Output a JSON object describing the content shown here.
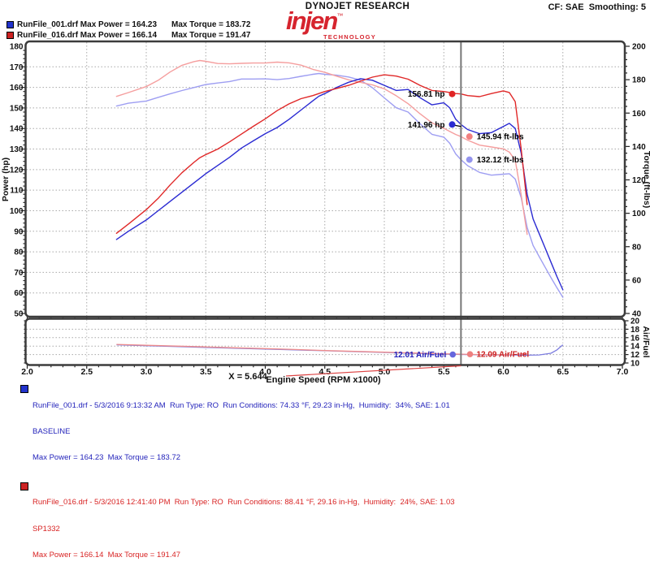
{
  "header": {
    "brand": "DYNOJET RESEARCH",
    "logo": {
      "word": "injen",
      "tm": "™",
      "sub": "TECHNOLOGY",
      "color": "#d6242e"
    },
    "settings": "CF: SAE  Smoothing: 5",
    "legend": [
      {
        "text1": "RunFile_001.drf Max Power = 164.23",
        "text2": "Max Torque = 183.72",
        "color": "#2233cc"
      },
      {
        "text1": "RunFile_016.drf Max Power = 166.14",
        "text2": "Max Torque = 191.47",
        "color": "#cc2222"
      }
    ]
  },
  "chart_data": {
    "type": "line",
    "xlabel": "Engine Speed (RPM x1000)",
    "x_range": [
      2.0,
      7.0
    ],
    "x_ticks": [
      "2.0",
      "2.5",
      "3.0",
      "3.5",
      "4.0",
      "4.5",
      "5.0",
      "5.5",
      "6.0",
      "6.5",
      "7.0"
    ],
    "x_gridlines": [
      2.5,
      3.0,
      3.5,
      4.0,
      4.5,
      5.0,
      5.5,
      6.0,
      6.5
    ],
    "cursor": {
      "x": 5.644,
      "label": "X = 5.644",
      "line_color": "#777777",
      "pointer_color": "#dd4444"
    },
    "main": {
      "left_axis": {
        "label": "Power (hp)",
        "range": [
          50,
          180
        ],
        "ticks": [
          50,
          60,
          70,
          80,
          90,
          100,
          110,
          120,
          130,
          140,
          150,
          160,
          170,
          180
        ]
      },
      "right_axis": {
        "label": "Torque (ft-lbs)",
        "range": [
          40,
          200
        ],
        "ticks": [
          40,
          60,
          80,
          100,
          120,
          140,
          160,
          180,
          200
        ]
      },
      "series": [
        {
          "name": "run1-torque",
          "run": "RunFile_001.drf",
          "axis": "torque",
          "color": "#9e9ef2",
          "points": [
            [
              2.75,
              164.2
            ],
            [
              2.85,
              165.9
            ],
            [
              3.0,
              167.2
            ],
            [
              3.1,
              169.4
            ],
            [
              3.2,
              171.5
            ],
            [
              3.3,
              173.5
            ],
            [
              3.4,
              175.3
            ],
            [
              3.5,
              177.1
            ],
            [
              3.6,
              178.0
            ],
            [
              3.7,
              178.9
            ],
            [
              3.8,
              180.4
            ],
            [
              3.9,
              180.4
            ],
            [
              4.0,
              180.5
            ],
            [
              4.1,
              180.0
            ],
            [
              4.2,
              180.7
            ],
            [
              4.3,
              182.0
            ],
            [
              4.4,
              183.2
            ],
            [
              4.45,
              183.72
            ],
            [
              4.5,
              183.2
            ],
            [
              4.6,
              182.7
            ],
            [
              4.7,
              181.6
            ],
            [
              4.8,
              179.7
            ],
            [
              4.9,
              175.2
            ],
            [
              5.0,
              169.1
            ],
            [
              5.1,
              163.2
            ],
            [
              5.2,
              160.6
            ],
            [
              5.3,
              153.6
            ],
            [
              5.4,
              147.3
            ],
            [
              5.5,
              145.6
            ],
            [
              5.55,
              141.9
            ],
            [
              5.6,
              135.5
            ],
            [
              5.644,
              132.12
            ],
            [
              5.7,
              128.5
            ],
            [
              5.8,
              124.5
            ],
            [
              5.9,
              122.8
            ],
            [
              6.0,
              123.4
            ],
            [
              6.05,
              123.7
            ],
            [
              6.1,
              120.5
            ],
            [
              6.15,
              109.3
            ],
            [
              6.2,
              91.5
            ],
            [
              6.25,
              80.7
            ],
            [
              6.3,
              74.2
            ],
            [
              6.35,
              67.8
            ],
            [
              6.4,
              61.5
            ],
            [
              6.45,
              55.4
            ],
            [
              6.5,
              49.7
            ]
          ]
        },
        {
          "name": "run2-torque",
          "run": "RunFile_016.drf",
          "axis": "torque",
          "color": "#f59e9e",
          "points": [
            [
              2.75,
              170.0
            ],
            [
              2.85,
              172.3
            ],
            [
              3.0,
              175.9
            ],
            [
              3.1,
              179.6
            ],
            [
              3.2,
              184.6
            ],
            [
              3.3,
              188.6
            ],
            [
              3.4,
              190.8
            ],
            [
              3.45,
              191.47
            ],
            [
              3.5,
              191.0
            ],
            [
              3.6,
              189.7
            ],
            [
              3.7,
              189.5
            ],
            [
              3.8,
              189.8
            ],
            [
              3.9,
              190.0
            ],
            [
              4.0,
              190.0
            ],
            [
              4.1,
              190.5
            ],
            [
              4.2,
              190.1
            ],
            [
              4.3,
              188.7
            ],
            [
              4.4,
              186.2
            ],
            [
              4.5,
              184.4
            ],
            [
              4.6,
              182.1
            ],
            [
              4.7,
              179.9
            ],
            [
              4.8,
              178.4
            ],
            [
              4.9,
              176.9
            ],
            [
              5.0,
              174.5
            ],
            [
              5.1,
              170.4
            ],
            [
              5.2,
              165.6
            ],
            [
              5.3,
              159.6
            ],
            [
              5.4,
              154.2
            ],
            [
              5.5,
              150.9
            ],
            [
              5.55,
              149.0
            ],
            [
              5.6,
              147.2
            ],
            [
              5.644,
              145.94
            ],
            [
              5.7,
              143.8
            ],
            [
              5.8,
              140.8
            ],
            [
              5.9,
              139.7
            ],
            [
              6.0,
              138.6
            ],
            [
              6.05,
              136.7
            ],
            [
              6.1,
              131.7
            ],
            [
              6.15,
              111.0
            ],
            [
              6.2,
              87.3
            ]
          ]
        },
        {
          "name": "run1-power",
          "run": "RunFile_001.drf",
          "axis": "power",
          "color": "#2a2ad2",
          "points": [
            [
              2.75,
              86
            ],
            [
              2.85,
              90
            ],
            [
              3.0,
              95.5
            ],
            [
              3.1,
              100
            ],
            [
              3.2,
              104.5
            ],
            [
              3.3,
              109
            ],
            [
              3.4,
              113.5
            ],
            [
              3.5,
              118
            ],
            [
              3.6,
              122
            ],
            [
              3.7,
              126
            ],
            [
              3.8,
              130.5
            ],
            [
              3.9,
              134
            ],
            [
              4.0,
              137.5
            ],
            [
              4.1,
              140.5
            ],
            [
              4.2,
              144.5
            ],
            [
              4.3,
              149
            ],
            [
              4.4,
              153.5
            ],
            [
              4.45,
              155.7
            ],
            [
              4.5,
              157
            ],
            [
              4.6,
              160
            ],
            [
              4.7,
              162.5
            ],
            [
              4.8,
              164.23
            ],
            [
              4.9,
              163.5
            ],
            [
              5.0,
              161
            ],
            [
              5.1,
              158.5
            ],
            [
              5.2,
              159
            ],
            [
              5.3,
              155
            ],
            [
              5.4,
              151.5
            ],
            [
              5.5,
              152.5
            ],
            [
              5.55,
              150
            ],
            [
              5.6,
              144.5
            ],
            [
              5.644,
              141.96
            ],
            [
              5.7,
              139.5
            ],
            [
              5.8,
              137.5
            ],
            [
              5.9,
              138
            ],
            [
              6.0,
              141
            ],
            [
              6.05,
              142.5
            ],
            [
              6.1,
              140
            ],
            [
              6.15,
              128
            ],
            [
              6.2,
              108
            ],
            [
              6.25,
              96
            ],
            [
              6.3,
              89
            ],
            [
              6.35,
              82
            ],
            [
              6.4,
              75
            ],
            [
              6.45,
              68
            ],
            [
              6.5,
              61.5
            ]
          ]
        },
        {
          "name": "run2-power",
          "run": "RunFile_016.drf",
          "axis": "power",
          "color": "#e02828",
          "points": [
            [
              2.75,
              89
            ],
            [
              2.85,
              93.5
            ],
            [
              3.0,
              100.5
            ],
            [
              3.1,
              106
            ],
            [
              3.2,
              112.5
            ],
            [
              3.3,
              118.5
            ],
            [
              3.4,
              123.5
            ],
            [
              3.45,
              125.8
            ],
            [
              3.5,
              127.3
            ],
            [
              3.6,
              130
            ],
            [
              3.7,
              133.5
            ],
            [
              3.8,
              137.3
            ],
            [
              3.9,
              141.1
            ],
            [
              4.0,
              144.7
            ],
            [
              4.1,
              148.7
            ],
            [
              4.2,
              152
            ],
            [
              4.3,
              154.5
            ],
            [
              4.4,
              156
            ],
            [
              4.5,
              158
            ],
            [
              4.6,
              159.5
            ],
            [
              4.7,
              161
            ],
            [
              4.8,
              163
            ],
            [
              4.9,
              165
            ],
            [
              5.0,
              166.14
            ],
            [
              5.1,
              165.5
            ],
            [
              5.2,
              164
            ],
            [
              5.3,
              161
            ],
            [
              5.4,
              158.5
            ],
            [
              5.5,
              158
            ],
            [
              5.55,
              157.5
            ],
            [
              5.6,
              157
            ],
            [
              5.644,
              156.81
            ],
            [
              5.7,
              156
            ],
            [
              5.8,
              155.5
            ],
            [
              5.9,
              157
            ],
            [
              6.0,
              158.3
            ],
            [
              6.05,
              157.5
            ],
            [
              6.1,
              153
            ],
            [
              6.15,
              130
            ],
            [
              6.2,
              103
            ]
          ]
        }
      ],
      "annotations": [
        {
          "label": "156.81 hp",
          "value": 156.81,
          "axis": "power",
          "rpm": 5.57,
          "side": "left",
          "dot_color": "#e02424",
          "text_color": "#000000"
        },
        {
          "label": "141.96 hp",
          "value": 141.96,
          "axis": "power",
          "rpm": 5.57,
          "side": "left",
          "dot_color": "#2a2ad2",
          "text_color": "#000000",
          "connector": true
        },
        {
          "label": "145.94 ft-lbs",
          "value": 145.94,
          "axis": "torque",
          "rpm": 5.715,
          "side": "right",
          "dot_color": "#f28080",
          "text_color": "#000000"
        },
        {
          "label": "132.12 ft-lbs",
          "value": 132.12,
          "axis": "torque",
          "rpm": 5.715,
          "side": "right",
          "dot_color": "#9494ee",
          "text_color": "#000000"
        }
      ]
    },
    "af": {
      "right_axis": {
        "label": "Air/Fuel",
        "range": [
          10,
          20
        ],
        "ticks": [
          10,
          12,
          14,
          16,
          18,
          20
        ],
        "gridlines": [
          12,
          14,
          16,
          18
        ]
      },
      "series": [
        {
          "name": "run1-airfuel",
          "run": "RunFile_001.drf",
          "color": "#7d7de0",
          "points": [
            [
              2.75,
              14.3
            ],
            [
              3.0,
              14.1
            ],
            [
              3.25,
              13.9
            ],
            [
              3.5,
              13.7
            ],
            [
              3.75,
              13.5
            ],
            [
              4.0,
              13.3
            ],
            [
              4.25,
              13.1
            ],
            [
              4.5,
              12.9
            ],
            [
              4.75,
              12.7
            ],
            [
              5.0,
              12.5
            ],
            [
              5.2,
              12.3
            ],
            [
              5.4,
              12.15
            ],
            [
              5.644,
              12.01
            ],
            [
              5.8,
              11.95
            ],
            [
              6.0,
              11.9
            ],
            [
              6.2,
              11.85
            ],
            [
              6.3,
              11.9
            ],
            [
              6.4,
              12.3
            ],
            [
              6.45,
              13.1
            ],
            [
              6.5,
              14.3
            ]
          ]
        },
        {
          "name": "run2-airfuel",
          "run": "RunFile_016.drf",
          "color": "#ee8c8c",
          "points": [
            [
              2.75,
              14.4
            ],
            [
              3.0,
              14.2
            ],
            [
              3.25,
              14.0
            ],
            [
              3.5,
              13.8
            ],
            [
              3.75,
              13.6
            ],
            [
              4.0,
              13.4
            ],
            [
              4.25,
              13.2
            ],
            [
              4.5,
              12.95
            ],
            [
              4.75,
              12.75
            ],
            [
              5.0,
              12.55
            ],
            [
              5.2,
              12.4
            ],
            [
              5.4,
              12.25
            ],
            [
              5.644,
              12.09
            ],
            [
              5.8,
              12.0
            ],
            [
              6.0,
              11.95
            ],
            [
              6.1,
              12.0
            ],
            [
              6.2,
              12.3
            ]
          ]
        }
      ],
      "annotations": [
        {
          "label": "12.01 Air/Fuel",
          "value": 12.01,
          "rpm": 5.575,
          "side": "left",
          "dot_color": "#6666dd",
          "text_color": "#2222bb"
        },
        {
          "label": "12.09 Air/Fuel",
          "value": 12.09,
          "rpm": 5.72,
          "side": "right",
          "dot_color": "#ee8080",
          "text_color": "#cc2222"
        }
      ]
    }
  },
  "footer": {
    "runs": [
      {
        "color": "#2424bb",
        "swatch": "#2233cc",
        "line1": "RunFile_001.drf - 5/3/2016 9:13:32 AM  Run Type: RO  Run Conditions: 74.33 °F, 29.23 in-Hg,  Humidity:  34%, SAE: 1.01",
        "line2": "BASELINE",
        "line3": "Max Power = 164.23  Max Torque = 183.72"
      },
      {
        "color": "#d82424",
        "swatch": "#cc2222",
        "line1": "RunFile_016.drf - 5/3/2016 12:41:40 PM  Run Type: RO  Run Conditions: 88.41 °F, 29.16 in-Hg,  Humidity:  24%, SAE: 1.03",
        "line2": "SP1332",
        "line3": "Max Power = 166.14  Max Torque = 191.47"
      }
    ]
  }
}
